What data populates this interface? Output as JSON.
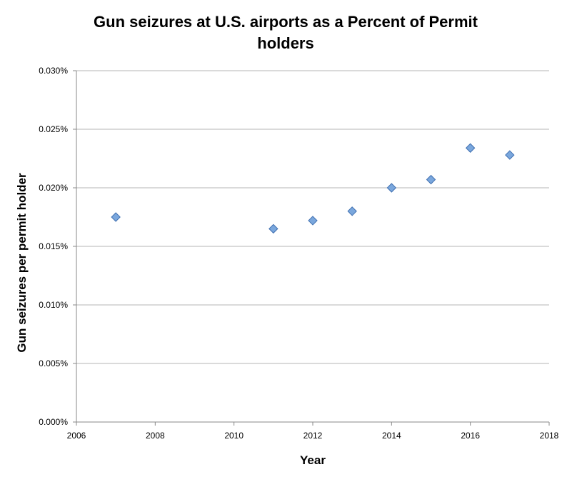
{
  "chart_data": {
    "type": "scatter",
    "title": "Gun seizures at U.S. airports as a Percent of Permit holders",
    "title_lines": [
      "Gun seizures at U.S. airports as a Percent of Permit",
      "holders"
    ],
    "xlabel": "Year",
    "ylabel": "Gun seizures per permit holder",
    "xlim": [
      2006,
      2018
    ],
    "ylim": [
      0,
      0.03
    ],
    "x_ticks": [
      2006,
      2008,
      2010,
      2012,
      2014,
      2016,
      2018
    ],
    "x_tick_labels": [
      "2006",
      "2008",
      "2010",
      "2012",
      "2014",
      "2016",
      "2018"
    ],
    "y_ticks": [
      0,
      0.005,
      0.01,
      0.015,
      0.02,
      0.025,
      0.03
    ],
    "y_tick_labels": [
      "0.000%",
      "0.005%",
      "0.010%",
      "0.015%",
      "0.020%",
      "0.025%",
      "0.030%"
    ],
    "y_unit": "percent",
    "grid": "horizontal",
    "legend": "none",
    "marker": "diamond",
    "colors": {
      "marker_fill": "#7aa7dd",
      "marker_stroke": "#3f6fb0",
      "grid": "#b5b5b5",
      "axis": "#888888"
    },
    "series": [
      {
        "x": [
          2007,
          2011,
          2012,
          2013,
          2014,
          2015,
          2016,
          2017
        ],
        "y": [
          0.0175,
          0.0165,
          0.0172,
          0.018,
          0.02,
          0.0207,
          0.0234,
          0.0228
        ]
      }
    ]
  }
}
